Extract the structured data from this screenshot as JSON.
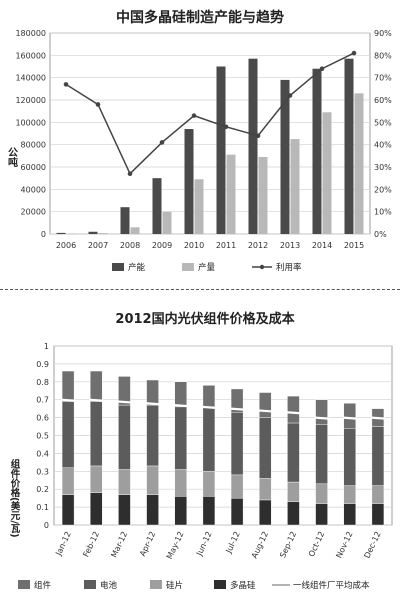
{
  "chart_data": [
    {
      "type": "bar",
      "title": "中国多晶硅制造产能与趋势",
      "ylabel": "公吨",
      "categories": [
        "2006",
        "2007",
        "2008",
        "2009",
        "2010",
        "2011",
        "2012",
        "2013",
        "2014",
        "2015"
      ],
      "ylim": [
        0,
        180000
      ],
      "y_ticks": [
        "0",
        "20000",
        "40000",
        "60000",
        "80000",
        "100000",
        "120000",
        "140000",
        "160000",
        "180000"
      ],
      "y2lim": [
        0,
        90
      ],
      "y2_ticks": [
        "0%",
        "10%",
        "20%",
        "30%",
        "40%",
        "50%",
        "60%",
        "70%",
        "80%",
        "90%"
      ],
      "grid": true,
      "legend_position": "bottom",
      "series": [
        {
          "name": "产能",
          "kind": "bar",
          "color": "#4a4a4a",
          "values": [
            1000,
            2000,
            24000,
            50000,
            94000,
            150000,
            157000,
            138000,
            148000,
            157000
          ]
        },
        {
          "name": "产量",
          "kind": "bar",
          "color": "#b8b8b8",
          "values": [
            400,
            800,
            6000,
            20000,
            49000,
            71000,
            69000,
            85000,
            109000,
            126000
          ]
        },
        {
          "name": "利用率",
          "kind": "line",
          "axis": "right",
          "color": "#444444",
          "values": [
            67,
            58,
            27,
            41,
            53,
            48,
            44,
            62,
            74,
            81
          ]
        }
      ]
    },
    {
      "type": "bar",
      "stacked": true,
      "title": "2012国内光伏组件价格及成本",
      "ylabel": "组件价格(美元/瓦)",
      "categories": [
        "Jan-12",
        "Feb-12",
        "Mar-12",
        "Apr-12",
        "May-12",
        "Jun-12",
        "Jul-12",
        "Aug-12",
        "Sep-12",
        "Oct-12",
        "Nov-12",
        "Dec-12"
      ],
      "ylim": [
        0,
        1
      ],
      "y_ticks": [
        "0",
        "0.1",
        "0.2",
        "0.3",
        "0.4",
        "0.5",
        "0.6",
        "0.7",
        "0.8",
        "0.9",
        "1"
      ],
      "grid": true,
      "legend_position": "bottom",
      "series": [
        {
          "name": "多晶硅",
          "color": "#2e2e2e",
          "values": [
            0.17,
            0.18,
            0.17,
            0.17,
            0.16,
            0.16,
            0.15,
            0.14,
            0.13,
            0.12,
            0.12,
            0.12
          ]
        },
        {
          "name": "硅片",
          "color": "#9e9e9e",
          "values": [
            0.15,
            0.15,
            0.14,
            0.16,
            0.15,
            0.14,
            0.13,
            0.12,
            0.11,
            0.11,
            0.1,
            0.1
          ]
        },
        {
          "name": "电池",
          "color": "#5c5c5c",
          "values": [
            0.37,
            0.36,
            0.36,
            0.34,
            0.35,
            0.36,
            0.35,
            0.34,
            0.33,
            0.33,
            0.32,
            0.33
          ]
        },
        {
          "name": "组件",
          "color": "#6f6f6f",
          "values": [
            0.17,
            0.17,
            0.16,
            0.14,
            0.14,
            0.12,
            0.13,
            0.14,
            0.15,
            0.14,
            0.14,
            0.1
          ]
        }
      ],
      "reference_line": {
        "name": "一线组件厂平均成本",
        "color": "#ffffff",
        "values": [
          0.7,
          0.7,
          0.69,
          0.68,
          0.67,
          0.66,
          0.65,
          0.64,
          0.63,
          0.6,
          0.6,
          0.6
        ]
      }
    }
  ]
}
